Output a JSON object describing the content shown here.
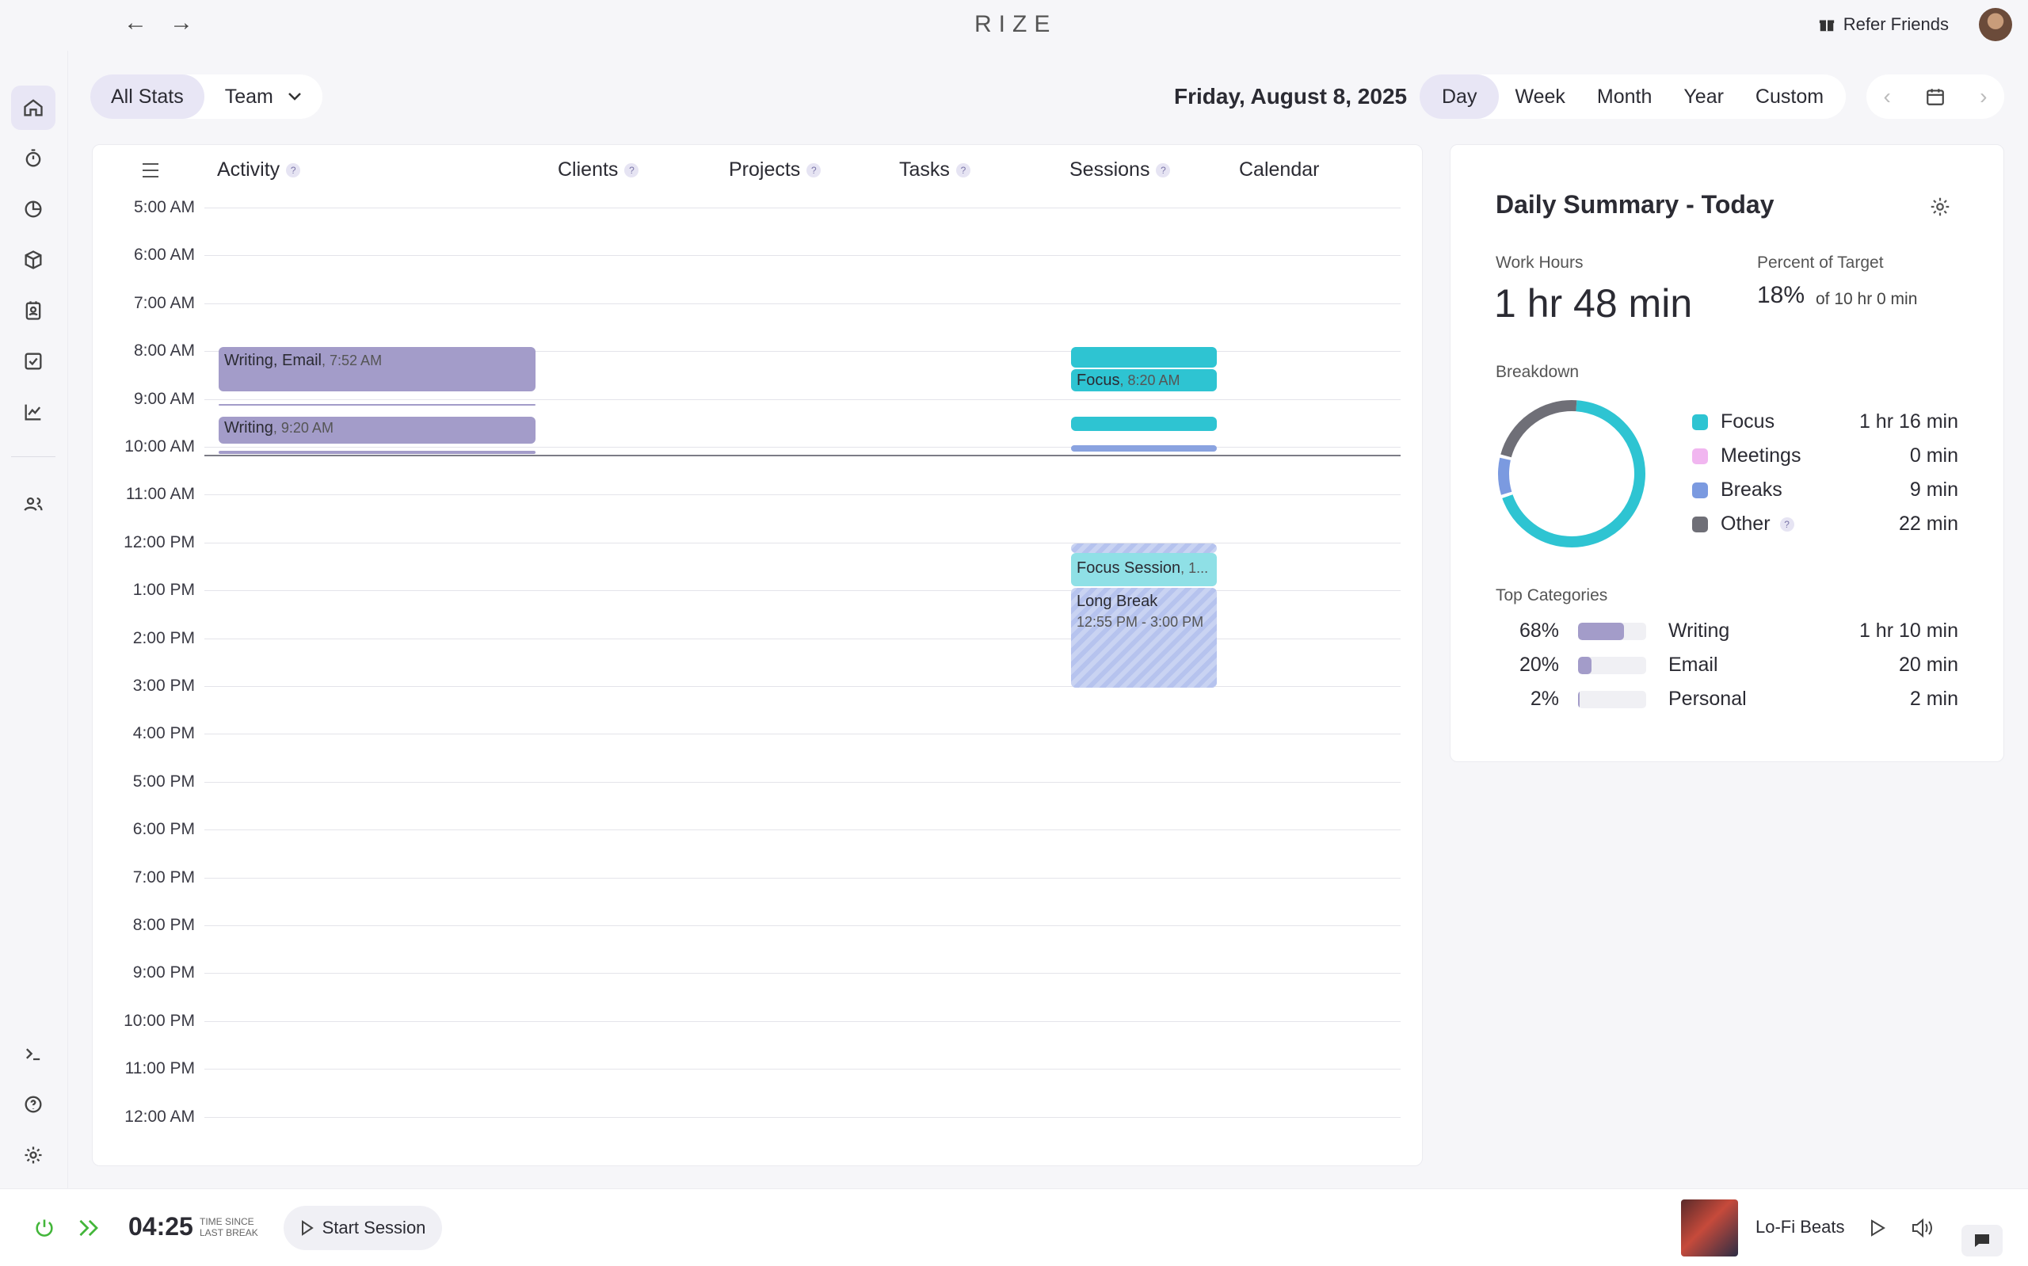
{
  "app": {
    "title": "RIZE",
    "refer_label": "Refer Friends"
  },
  "filters": {
    "all_stats": "All Stats",
    "team": "Team"
  },
  "date_title": "Friday, August 8, 2025",
  "ranges": [
    "Day",
    "Week",
    "Month",
    "Year",
    "Custom"
  ],
  "columns": [
    "Activity",
    "Clients",
    "Projects",
    "Tasks",
    "Sessions",
    "Calendar"
  ],
  "hours": [
    "5:00 AM",
    "6:00 AM",
    "7:00 AM",
    "8:00 AM",
    "9:00 AM",
    "10:00 AM",
    "11:00 AM",
    "12:00 PM",
    "1:00 PM",
    "2:00 PM",
    "3:00 PM",
    "4:00 PM",
    "5:00 PM",
    "6:00 PM",
    "7:00 PM",
    "8:00 PM",
    "9:00 PM",
    "10:00 PM",
    "11:00 PM",
    "12:00 AM"
  ],
  "events": {
    "activity1_title": "Writing, Email",
    "activity1_time": "7:52 AM",
    "activity2_title": "Writing",
    "activity2_time": "9:20 AM",
    "focus_title": "Focus",
    "focus_time": "8:20 AM",
    "focus_session": "Focus Session",
    "focus_session_suffix": ", 1...",
    "long_break": "Long Break",
    "long_break_time": "12:55 PM - 3:00 PM"
  },
  "summary": {
    "title": "Daily Summary - Today",
    "work_hours_label": "Work Hours",
    "work_hours": "1 hr 48 min",
    "percent_label": "Percent of Target",
    "percent": "18%",
    "percent_of": "of 10 hr 0 min",
    "breakdown_label": "Breakdown",
    "breakdown": [
      {
        "name": "Focus",
        "value": "1 hr 16 min",
        "color": "#2ec4d2"
      },
      {
        "name": "Meetings",
        "value": "0 min",
        "color": "#f1b6f0"
      },
      {
        "name": "Breaks",
        "value": "9 min",
        "color": "#7b9ae0"
      },
      {
        "name": "Other",
        "value": "22 min",
        "color": "#6f6f77"
      }
    ],
    "top_categories_label": "Top Categories",
    "categories": [
      {
        "pct": "68%",
        "fill": 0.68,
        "name": "Writing",
        "value": "1 hr 10 min"
      },
      {
        "pct": "20%",
        "fill": 0.2,
        "name": "Email",
        "value": "20 min"
      },
      {
        "pct": "2%",
        "fill": 0.02,
        "name": "Personal",
        "value": "2 min"
      }
    ]
  },
  "bottom": {
    "timer": "04:25",
    "timer_caption_1": "TIME SINCE",
    "timer_caption_2": "LAST BREAK",
    "start_session": "Start Session",
    "track": "Lo-Fi Beats"
  }
}
